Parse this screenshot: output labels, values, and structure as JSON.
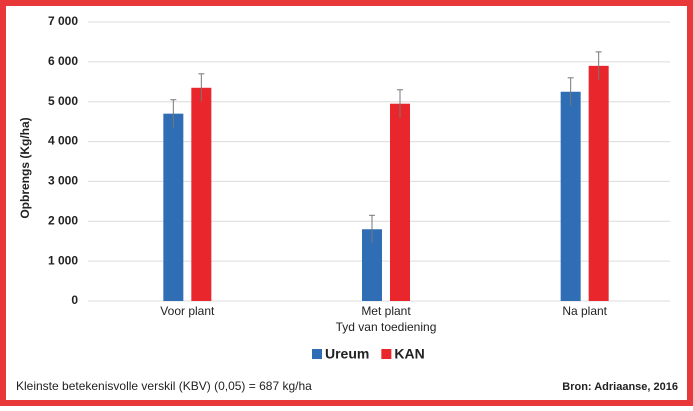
{
  "chart_data": {
    "type": "bar",
    "y_label": "Opbrengs (Kg/ha)",
    "x_label": "Tyd van toediening",
    "categories": [
      "Voor plant",
      "Met plant",
      "Na plant"
    ],
    "series": [
      {
        "name": "Ureum",
        "color": "#2f6db5",
        "values": [
          4700,
          1800,
          5250
        ],
        "errors": [
          350,
          350,
          350
        ]
      },
      {
        "name": "KAN",
        "color": "#e8262b",
        "values": [
          5350,
          4950,
          5900
        ],
        "errors": [
          350,
          350,
          350
        ]
      }
    ],
    "ylim": [
      0,
      7000
    ],
    "yticks": [
      0,
      {
        "value": 1000,
        "label": "1 000"
      },
      {
        "value": 2000,
        "label": "2 000"
      },
      {
        "value": 3000,
        "label": "3 000"
      },
      {
        "value": 4000,
        "label": "4 000"
      },
      {
        "value": 5000,
        "label": "5 000"
      },
      {
        "value": 6000,
        "label": "6 000"
      },
      {
        "value": 7000,
        "label": "7 000"
      }
    ],
    "grid": true,
    "note": "Kleinste betekenisvolle verskil (KBV) (0,05) = 687 kg/ha",
    "source": "Bron: Adriaanse, 2016"
  }
}
